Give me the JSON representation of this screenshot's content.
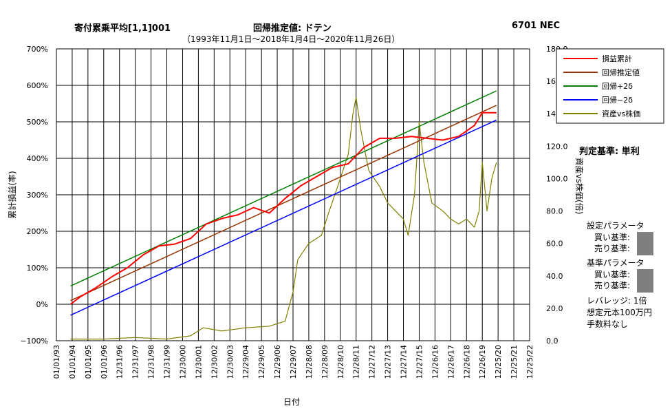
{
  "header": {
    "left_title": "寄付累乗平均[1,1]001",
    "center_title": "回帰推定値: ドテン",
    "right_title": "6701 NEC",
    "subtitle": "（1993年11月1日〜2018年1月4日〜2020年11月26日）"
  },
  "side_panel": {
    "criterion": "判定基準: 単利",
    "param_heading": "設定パラメータ",
    "buy_label_1": "買い基準:",
    "sell_label_1": "売り基準:",
    "base_heading": "基準パラメータ",
    "buy_label_2": "買い基準:",
    "sell_label_2": "売り基準:",
    "leverage": "レバレッジ: 1倍",
    "capital": "想定元本100万円",
    "fees": "手数料なし"
  },
  "colors": {
    "cumulative": "#ff0000",
    "regression": "#993300",
    "upper": "#008000",
    "lower": "#0000ff",
    "asset_ratio": "#808000"
  },
  "chart_data": {
    "type": "line",
    "xlabel": "日付",
    "ylabel_left": "累計損益(率)",
    "ylabel_right": "資産vs株価(倍)",
    "ylim_left": [
      -100,
      700
    ],
    "ylim_right": [
      0,
      180
    ],
    "left_ticks": [
      "700%",
      "600%",
      "500%",
      "400%",
      "300%",
      "200%",
      "100%",
      "0%",
      "−100%"
    ],
    "right_ticks": [
      "180.0",
      "160.0",
      "140.0",
      "120.0",
      "100.0",
      "80.0",
      "60.0",
      "40.0",
      "20.0",
      "0.0"
    ],
    "x_ticks": [
      "01/01/93",
      "01/01/94",
      "01/01/95",
      "01/01/96",
      "12/31/96",
      "12/31/97",
      "12/31/98",
      "12/31/99",
      "12/30/00",
      "12/30/01",
      "12/30/02",
      "12/30/03",
      "12/29/04",
      "12/29/05",
      "12/29/06",
      "12/29/07",
      "12/28/08",
      "12/28/09",
      "12/28/10",
      "12/28/11",
      "12/27/12",
      "12/27/13",
      "12/27/14",
      "12/27/15",
      "12/26/16",
      "12/26/17",
      "12/26/18",
      "12/26/19",
      "12/25/20",
      "12/25/21",
      "12/25/22"
    ],
    "grid": true,
    "legend_position": "right",
    "x_start_year": 1993.0,
    "x_end_year": 2023.0,
    "series": [
      {
        "name": "損益累計",
        "axis": "left",
        "points": [
          [
            1993.9,
            0
          ],
          [
            1994.5,
            20
          ],
          [
            1995.5,
            45
          ],
          [
            1996.5,
            75
          ],
          [
            1997.5,
            100
          ],
          [
            1998.5,
            135
          ],
          [
            1999.5,
            160
          ],
          [
            2000.5,
            165
          ],
          [
            2001.5,
            180
          ],
          [
            2002.5,
            220
          ],
          [
            2003.5,
            235
          ],
          [
            2004.5,
            245
          ],
          [
            2005.5,
            265
          ],
          [
            2006.5,
            250
          ],
          [
            2007.5,
            290
          ],
          [
            2008.5,
            325
          ],
          [
            2009.5,
            350
          ],
          [
            2010.5,
            375
          ],
          [
            2011.5,
            385
          ],
          [
            2012.5,
            430
          ],
          [
            2013.5,
            455
          ],
          [
            2014.5,
            455
          ],
          [
            2015.5,
            460
          ],
          [
            2016.5,
            455
          ],
          [
            2017.5,
            450
          ],
          [
            2018.5,
            460
          ],
          [
            2019.5,
            490
          ],
          [
            2020.0,
            525
          ],
          [
            2020.9,
            525
          ]
        ]
      },
      {
        "name": "回帰推定値",
        "axis": "left",
        "points": [
          [
            1993.9,
            10
          ],
          [
            2020.9,
            545
          ]
        ]
      },
      {
        "name": "回帰+2δ",
        "axis": "left",
        "points": [
          [
            1993.9,
            50
          ],
          [
            2020.9,
            585
          ]
        ]
      },
      {
        "name": "回帰−2δ",
        "axis": "left",
        "points": [
          [
            1993.9,
            -30
          ],
          [
            2020.9,
            505
          ]
        ]
      },
      {
        "name": "資産vs株価",
        "axis": "right",
        "points": [
          [
            1993.9,
            1
          ],
          [
            1996.0,
            1
          ],
          [
            1998.0,
            2
          ],
          [
            2000.0,
            1
          ],
          [
            2001.5,
            3
          ],
          [
            2002.3,
            8
          ],
          [
            2003.5,
            6
          ],
          [
            2005.0,
            8
          ],
          [
            2006.5,
            9
          ],
          [
            2007.5,
            12
          ],
          [
            2008.0,
            30
          ],
          [
            2008.3,
            50
          ],
          [
            2009.0,
            60
          ],
          [
            2009.8,
            65
          ],
          [
            2010.3,
            80
          ],
          [
            2011.0,
            100
          ],
          [
            2011.5,
            115
          ],
          [
            2011.8,
            140
          ],
          [
            2012.0,
            150
          ],
          [
            2012.3,
            130
          ],
          [
            2012.8,
            105
          ],
          [
            2013.5,
            95
          ],
          [
            2014.0,
            85
          ],
          [
            2014.5,
            80
          ],
          [
            2015.0,
            75
          ],
          [
            2015.3,
            65
          ],
          [
            2015.7,
            90
          ],
          [
            2016.0,
            135
          ],
          [
            2016.3,
            110
          ],
          [
            2016.8,
            85
          ],
          [
            2017.5,
            80
          ],
          [
            2018.0,
            75
          ],
          [
            2018.5,
            72
          ],
          [
            2019.0,
            75
          ],
          [
            2019.5,
            70
          ],
          [
            2019.8,
            80
          ],
          [
            2020.0,
            110
          ],
          [
            2020.3,
            80
          ],
          [
            2020.6,
            100
          ],
          [
            2020.9,
            110
          ]
        ]
      }
    ]
  }
}
